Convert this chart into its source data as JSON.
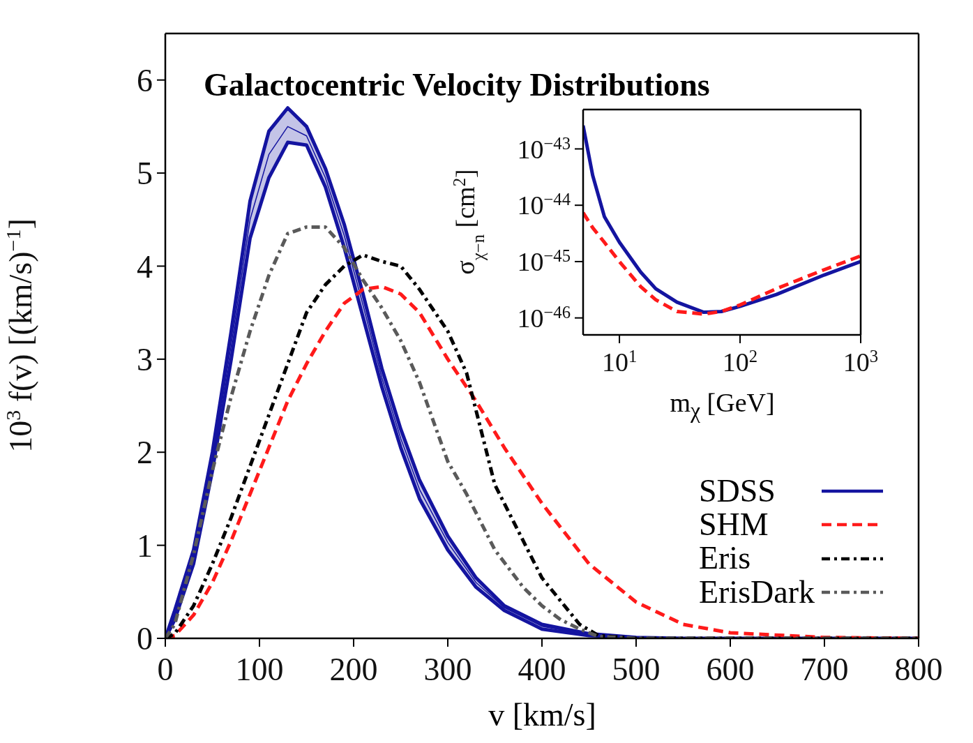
{
  "chart_data": [
    {
      "type": "line",
      "title": "Galactocentric Velocity Distributions",
      "xlabel": "v [km/s]",
      "ylabel": "10$^{3}$ f(v) [(km/s)$^{−1}$]",
      "x": [
        0,
        10,
        30,
        50,
        70,
        90,
        110,
        130,
        150,
        170,
        190,
        210,
        230,
        250,
        270,
        300,
        330,
        360,
        400,
        450,
        500,
        550,
        600,
        700,
        800
      ],
      "series": [
        {
          "name": "SDSS",
          "color": "#1414a0",
          "line_style": "solid",
          "values": [
            0,
            0.25,
            0.88,
            1.9,
            3.15,
            4.5,
            5.2,
            5.5,
            5.4,
            4.95,
            4.33,
            3.58,
            2.8,
            2.15,
            1.6,
            1.03,
            0.6,
            0.33,
            0.13,
            0.04,
            0.01,
            0,
            0,
            0,
            0
          ],
          "lower": [
            0,
            0.2,
            0.8,
            1.8,
            3.0,
            4.3,
            4.95,
            5.33,
            5.3,
            4.85,
            4.2,
            3.45,
            2.7,
            2.05,
            1.5,
            0.95,
            0.55,
            0.3,
            0.1,
            0.03,
            0.01,
            0,
            0,
            0,
            0
          ],
          "upper": [
            0,
            0.3,
            0.95,
            2.0,
            3.3,
            4.7,
            5.45,
            5.7,
            5.5,
            5.05,
            4.45,
            3.7,
            2.9,
            2.25,
            1.7,
            1.1,
            0.65,
            0.35,
            0.15,
            0.05,
            0.01,
            0,
            0,
            0,
            0
          ]
        },
        {
          "name": "SHM",
          "color": "#ff1a1a",
          "line_style": "dashed",
          "values": [
            0,
            0.03,
            0.25,
            0.6,
            1.05,
            1.55,
            2.05,
            2.55,
            2.95,
            3.3,
            3.6,
            3.75,
            3.78,
            3.7,
            3.5,
            3.0,
            2.55,
            2.05,
            1.45,
            0.8,
            0.39,
            0.15,
            0.06,
            0.01,
            0
          ]
        },
        {
          "name": "Eris",
          "color": "#000000",
          "line_style": "dashdot",
          "x": [
            0,
            10,
            30,
            50,
            70,
            90,
            110,
            130,
            150,
            170,
            190,
            210,
            230,
            250,
            270,
            300,
            320,
            350,
            380,
            400,
            420,
            440,
            460,
            500,
            800
          ],
          "values": [
            0,
            0.05,
            0.35,
            0.8,
            1.3,
            1.85,
            2.4,
            2.95,
            3.5,
            3.8,
            4.0,
            4.12,
            4.05,
            4.0,
            3.75,
            3.3,
            2.85,
            1.65,
            1.05,
            0.65,
            0.4,
            0.15,
            0.03,
            0,
            0
          ]
        },
        {
          "name": "ErisDark",
          "color": "#5a5a5a",
          "line_style": "dashdot",
          "x": [
            0,
            10,
            30,
            50,
            70,
            90,
            110,
            130,
            150,
            170,
            190,
            210,
            230,
            250,
            270,
            300,
            320,
            350,
            380,
            400,
            420,
            440,
            460,
            500,
            800
          ],
          "values": [
            0,
            0.15,
            0.9,
            1.8,
            2.6,
            3.3,
            3.9,
            4.35,
            4.42,
            4.42,
            4.2,
            3.85,
            3.55,
            3.2,
            2.75,
            1.9,
            1.55,
            0.95,
            0.55,
            0.35,
            0.2,
            0.1,
            0.02,
            0,
            0
          ]
        }
      ],
      "xlim": [
        0,
        800
      ],
      "xticks": [
        0,
        100,
        200,
        300,
        400,
        500,
        600,
        700,
        800
      ],
      "ylim": [
        0,
        6.5
      ],
      "yticks": [
        0,
        1,
        2,
        3,
        4,
        5,
        6
      ],
      "grid": false,
      "legend": "bottom right",
      "marker": "none"
    },
    {
      "type": "line",
      "xlabel": "m$_{χ}$ [GeV]",
      "ylabel": "σ$_{χ−n}$ [cm$^{2}$]",
      "log": "xy",
      "x": [
        5,
        6,
        7.5,
        10,
        15,
        20,
        30,
        50,
        70,
        100,
        200,
        500,
        1000
      ],
      "series": [
        {
          "color": "#1414a0",
          "line_style": "solid",
          "values": [
            2.6e-43,
            3.4e-44,
            6.3e-45,
            2.2e-45,
            6.5e-46,
            3.3e-46,
            1.9e-46,
            1.26e-46,
            1.3e-46,
            1.6e-46,
            2.6e-46,
            5.8e-46,
            1e-45
          ]
        },
        {
          "color": "#ff1a1a",
          "line_style": "dashed",
          "values": [
            7.4e-45,
            4e-45,
            2.2e-45,
            1e-45,
            3.6e-46,
            2.1e-46,
            1.3e-46,
            1.17e-46,
            1.3e-46,
            1.7e-46,
            3.3e-46,
            7.2e-46,
            1.26e-45
          ]
        }
      ],
      "xlim": [
        5,
        1000
      ],
      "xticks": [
        {
          "value": 10,
          "label": "10$^{1}$"
        },
        {
          "value": 100,
          "label": "10$^{2}$"
        },
        {
          "value": 1000,
          "label": "10$^{3}$"
        }
      ],
      "ylim": [
        5e-47,
        5e-43
      ],
      "yticks": [
        {
          "value": 1e-46,
          "label": "10$^{−46}$"
        },
        {
          "value": 1e-45,
          "label": "10$^{−45}$"
        },
        {
          "value": 1e-44,
          "label": "10$^{−44}$"
        },
        {
          "value": 1e-43,
          "label": "10$^{−43}$"
        }
      ],
      "grid": false,
      "legend": false,
      "marker": "none"
    }
  ]
}
